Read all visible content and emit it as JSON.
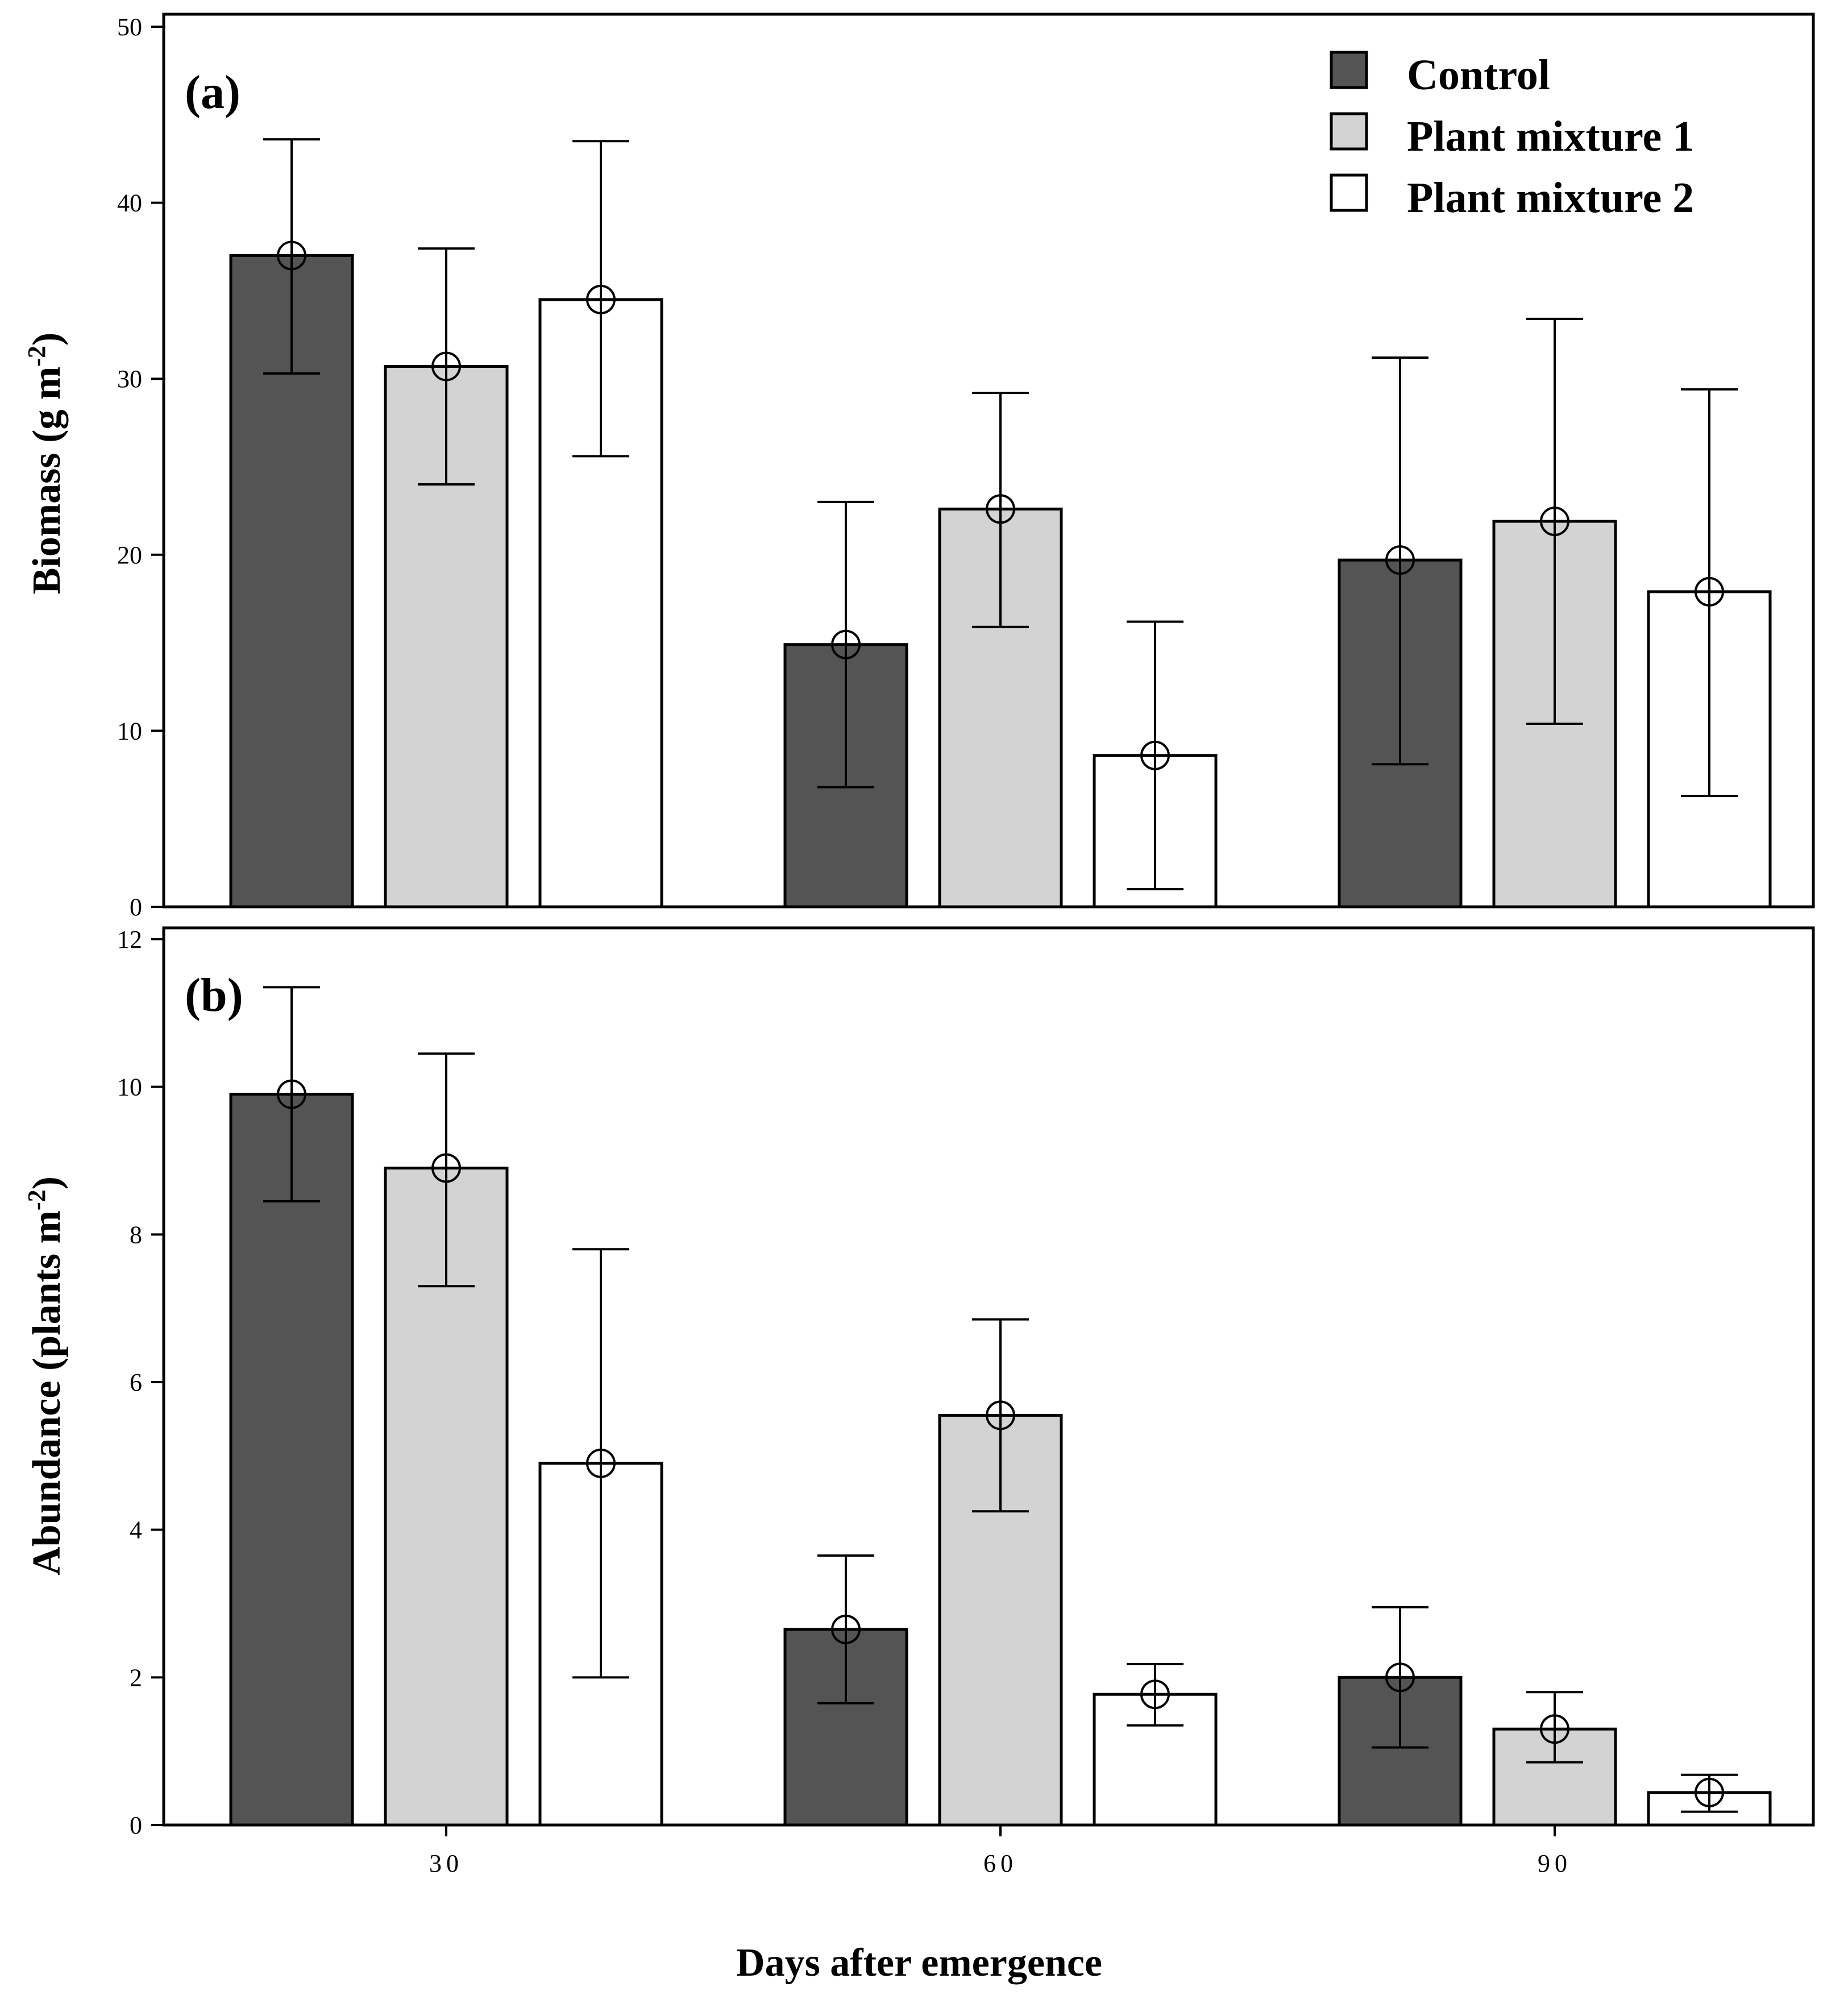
{
  "colors": {
    "control": "#545454",
    "plant_mixture_1": "#d3d3d3",
    "plant_mixture_2": "#ffffff",
    "stroke": "#000000"
  },
  "legend": {
    "items": [
      {
        "label": "Control",
        "color_key": "control"
      },
      {
        "label": "Plant mixture 1",
        "color_key": "plant_mixture_1"
      },
      {
        "label": "Plant mixture 2",
        "color_key": "plant_mixture_2"
      }
    ]
  },
  "xaxis": {
    "label": "Days after emergence",
    "categories": [
      "30",
      "60",
      "90"
    ]
  },
  "chart_data": [
    {
      "type": "bar",
      "panel": "(a)",
      "ylabel": "Biomass (g m",
      "ylabel_sup": "-2",
      "ylabel_close": ")",
      "ylim": [
        0,
        50
      ],
      "yticks": [
        "0",
        "10",
        "20",
        "30",
        "40",
        "50"
      ],
      "categories": [
        "30",
        "60",
        "90"
      ],
      "series": [
        {
          "name": "Control",
          "values": [
            37.0,
            14.9,
            19.7
          ],
          "err_low": [
            30.3,
            6.8,
            8.1
          ],
          "err_high": [
            43.6,
            23.0,
            31.2
          ]
        },
        {
          "name": "Plant mixture 1",
          "values": [
            30.7,
            22.6,
            21.9
          ],
          "err_low": [
            24.0,
            15.9,
            10.4
          ],
          "err_high": [
            37.4,
            29.2,
            33.4
          ]
        },
        {
          "name": "Plant mixture 2",
          "values": [
            34.5,
            8.6,
            17.9
          ],
          "err_low": [
            25.6,
            1.0,
            6.3
          ],
          "err_high": [
            43.5,
            16.2,
            29.4
          ]
        }
      ]
    },
    {
      "type": "bar",
      "panel": "(b)",
      "ylabel": "Abundance (plants m",
      "ylabel_sup": "-2",
      "ylabel_close": ")",
      "ylim": [
        0,
        12
      ],
      "yticks": [
        "0",
        "2",
        "4",
        "6",
        "8",
        "10",
        "12"
      ],
      "categories": [
        "30",
        "60",
        "90"
      ],
      "series": [
        {
          "name": "Control",
          "values": [
            9.9,
            2.65,
            2.0
          ],
          "err_low": [
            8.45,
            1.65,
            1.05
          ],
          "err_high": [
            11.35,
            3.65,
            2.95
          ]
        },
        {
          "name": "Plant mixture 1",
          "values": [
            8.9,
            5.55,
            1.3
          ],
          "err_low": [
            7.3,
            4.25,
            0.85
          ],
          "err_high": [
            10.45,
            6.85,
            1.8
          ]
        },
        {
          "name": "Plant mixture 2",
          "values": [
            4.9,
            1.77,
            0.44
          ],
          "err_low": [
            2.0,
            1.35,
            0.18
          ],
          "err_high": [
            7.8,
            2.18,
            0.68
          ]
        }
      ]
    }
  ]
}
